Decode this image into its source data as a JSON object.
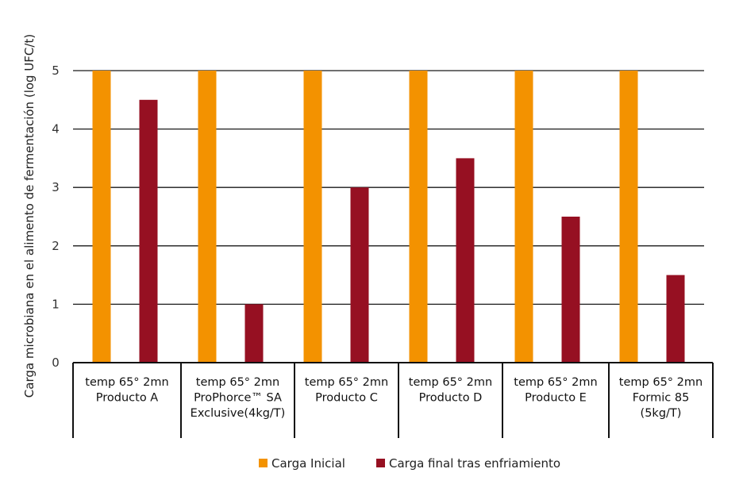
{
  "chart_data": {
    "type": "bar",
    "title": "",
    "xlabel": "",
    "ylabel": "Carga microbiana en el alimento de fermentación (log UFC/t)",
    "ylim": [
      0,
      5
    ],
    "yticks": [
      "0",
      "1",
      "2",
      "3",
      "4",
      "5"
    ],
    "grid": true,
    "legend_position": "bottom",
    "categories": [
      [
        "temp 65° 2mn",
        "Producto A"
      ],
      [
        "temp 65° 2mn",
        "ProPhorce™ SA",
        "Exclusive(4kg/T)"
      ],
      [
        "temp 65° 2mn",
        "Producto C"
      ],
      [
        "temp 65° 2mn",
        "Producto D"
      ],
      [
        "temp 65° 2mn",
        "Producto E"
      ],
      [
        "temp 65° 2mn",
        "Formic 85",
        "(5kg/T)"
      ]
    ],
    "series": [
      {
        "name": "Carga Inicial",
        "color": "#F39200",
        "values": [
          5,
          5,
          5,
          5,
          5,
          5
        ]
      },
      {
        "name": "Carga final tras enfriamiento",
        "color": "#961022",
        "values": [
          4.5,
          1,
          3,
          3.5,
          2.5,
          1.5
        ]
      }
    ]
  }
}
